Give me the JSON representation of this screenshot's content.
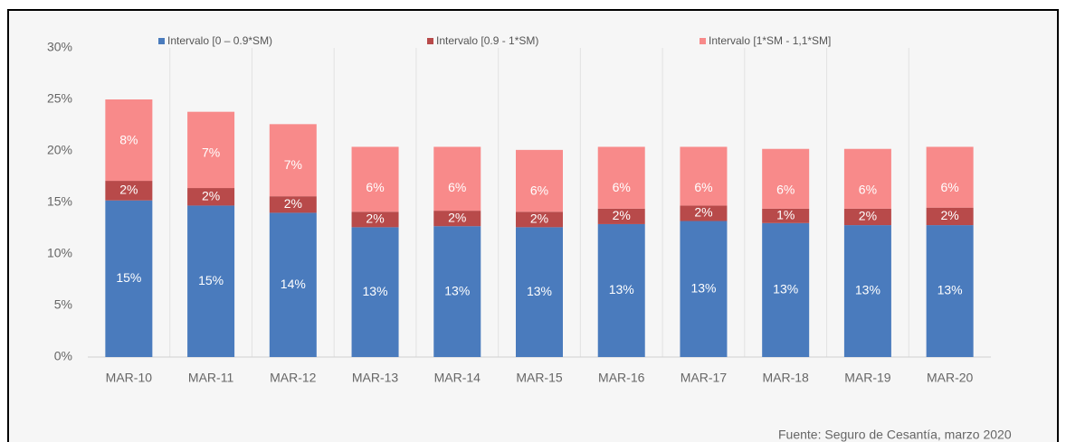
{
  "chart_data": {
    "type": "stacked_bar",
    "categories": [
      "MAR-10",
      "MAR-11",
      "MAR-12",
      "MAR-13",
      "MAR-14",
      "MAR-15",
      "MAR-16",
      "MAR-17",
      "MAR-18",
      "MAR-19",
      "MAR-20"
    ],
    "series": [
      {
        "name": "Intervalo [0 – 0.9*SM)",
        "color": "#4a7bbd",
        "values": [
          15.2,
          14.7,
          14.0,
          12.6,
          12.7,
          12.6,
          12.9,
          13.2,
          13.0,
          12.8,
          12.8
        ],
        "value_labels": [
          "15%",
          "15%",
          "14%",
          "13%",
          "13%",
          "13%",
          "13%",
          "13%",
          "13%",
          "13%",
          "13%"
        ]
      },
      {
        "name": "Intervalo [0.9 - 1*SM)",
        "color": "#b84a4a",
        "values": [
          1.9,
          1.7,
          1.6,
          1.5,
          1.5,
          1.5,
          1.5,
          1.5,
          1.4,
          1.6,
          1.7
        ],
        "value_labels": [
          "2%",
          "2%",
          "2%",
          "2%",
          "2%",
          "2%",
          "2%",
          "2%",
          "1%",
          "2%",
          "2%"
        ]
      },
      {
        "name": "Intervalo [1*SM - 1,1*SM]",
        "color": "#f88a8a",
        "values": [
          7.9,
          7.4,
          7.0,
          6.3,
          6.2,
          6.0,
          6.0,
          5.7,
          5.8,
          5.8,
          5.9
        ],
        "value_labels": [
          "8%",
          "7%",
          "7%",
          "6%",
          "6%",
          "6%",
          "6%",
          "6%",
          "6%",
          "6%",
          "6%"
        ]
      }
    ],
    "ylim": [
      0,
      30
    ],
    "yticks": [
      {
        "value": 0,
        "label": "0%"
      },
      {
        "value": 5,
        "label": "5%"
      },
      {
        "value": 10,
        "label": "10%"
      },
      {
        "value": 15,
        "label": "15%"
      },
      {
        "value": 20,
        "label": "20%"
      },
      {
        "value": 25,
        "label": "25%"
      },
      {
        "value": 30,
        "label": "30%"
      }
    ],
    "legend": "top",
    "source": "Fuente: Seguro de Cesantía, marzo 2020"
  }
}
